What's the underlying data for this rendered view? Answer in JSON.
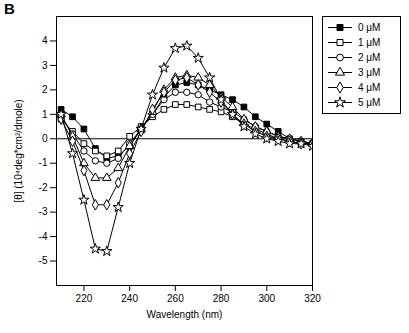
{
  "chart_data": {
    "type": "line",
    "title": "B",
    "x_label": "Wavelength (nm)",
    "y_label": "[θ] (10⁴deg*cm²/dmole)",
    "x": [
      210,
      215,
      220,
      225,
      230,
      235,
      240,
      245,
      250,
      255,
      260,
      265,
      270,
      275,
      280,
      285,
      290,
      295,
      300,
      305,
      310,
      315,
      320
    ],
    "series": [
      {
        "name": "0 μM",
        "color": "#000000",
        "marker": "filled-square",
        "values": [
          1.2,
          0.9,
          0.4,
          -0.4,
          -0.8,
          -0.7,
          -0.3,
          0.4,
          1.0,
          1.7,
          2.2,
          2.3,
          2.2,
          2.0,
          1.8,
          1.6,
          1.3,
          0.9,
          0.6,
          0.3,
          0.0,
          -0.1,
          -0.2
        ]
      },
      {
        "name": "1 μM",
        "color": "#000000",
        "marker": "square",
        "values": [
          0.8,
          0.3,
          -0.2,
          -0.5,
          -0.7,
          -0.5,
          0.1,
          0.5,
          0.9,
          1.2,
          1.4,
          1.4,
          1.3,
          1.2,
          1.1,
          0.9,
          0.6,
          0.4,
          0.2,
          0.0,
          -0.1,
          -0.2,
          -0.2
        ]
      },
      {
        "name": "2 μM",
        "color": "#000000",
        "marker": "circle",
        "values": [
          0.9,
          0.2,
          -0.5,
          -0.9,
          -1.0,
          -0.8,
          -0.2,
          0.4,
          1.0,
          1.6,
          1.9,
          1.9,
          1.8,
          1.5,
          1.3,
          1.1,
          0.8,
          0.5,
          0.3,
          0.1,
          0.0,
          -0.1,
          -0.2
        ]
      },
      {
        "name": "3 μM",
        "color": "#000000",
        "marker": "triangle",
        "values": [
          1.0,
          0.1,
          -1.0,
          -1.6,
          -1.6,
          -1.2,
          -0.3,
          0.4,
          1.1,
          2.0,
          2.5,
          2.6,
          2.5,
          2.2,
          1.7,
          1.3,
          0.8,
          0.5,
          0.3,
          0.1,
          0.0,
          -0.1,
          -0.2
        ]
      },
      {
        "name": "4 μM",
        "color": "#000000",
        "marker": "diamond",
        "values": [
          0.8,
          -0.1,
          -1.3,
          -2.7,
          -2.7,
          -1.8,
          -0.6,
          0.3,
          1.2,
          1.9,
          2.4,
          2.5,
          2.2,
          1.9,
          1.5,
          1.0,
          0.6,
          0.3,
          0.1,
          0.0,
          -0.1,
          -0.2,
          -0.2
        ]
      },
      {
        "name": "5 μM",
        "color": "#000000",
        "marker": "star",
        "values": [
          1.0,
          -0.6,
          -2.5,
          -4.5,
          -4.6,
          -2.8,
          -1.0,
          0.4,
          1.8,
          2.9,
          3.7,
          3.8,
          3.3,
          2.5,
          1.6,
          1.0,
          0.5,
          0.2,
          0.0,
          -0.1,
          -0.2,
          -0.2,
          -0.3
        ]
      }
    ],
    "xlim": [
      208,
      320
    ],
    "xticks": [
      220,
      240,
      260,
      280,
      300,
      320
    ],
    "ylim": [
      -6,
      5
    ],
    "yticks": [
      -5,
      -4,
      -3,
      -2,
      -1,
      0,
      1,
      2,
      3,
      4
    ],
    "legend": "right",
    "grid": false
  }
}
